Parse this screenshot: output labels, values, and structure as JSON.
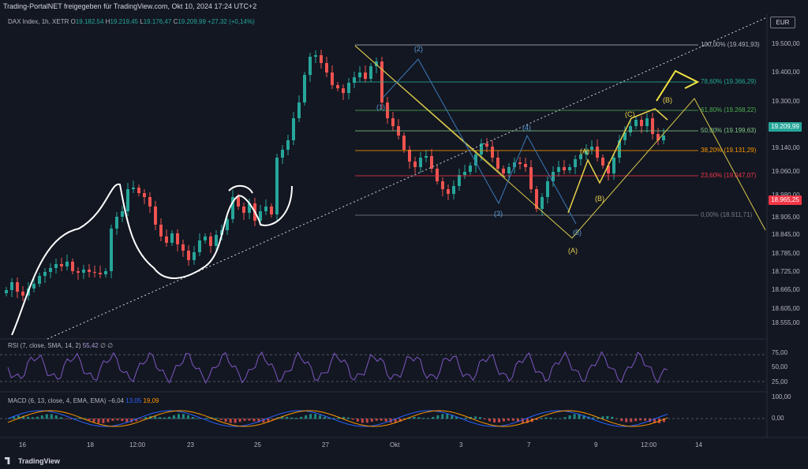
{
  "header": {
    "published": "Trading-PortalNET freigegeben für TradingView.com, Okt 10, 2024 17:24 UTC+2"
  },
  "symbol": {
    "name": "DAX Index, 1h, XETR",
    "o_label": "O",
    "o": "19.182,54",
    "h_label": "H",
    "h": "19.219,45",
    "l_label": "L",
    "l": "19.176,47",
    "c_label": "C",
    "c": "19.209,99",
    "change": "+27,32 (+0,14%)"
  },
  "currency": "EUR",
  "price_axis": {
    "ticks": [
      "19.500,00",
      "19.400,00",
      "19.300,00",
      "19.140,00",
      "19.060,00",
      "18.980,00",
      "18.905,00",
      "18.845,00",
      "18.785,00",
      "18.725,00",
      "18.665,00",
      "18.605,00",
      "18.555,00"
    ],
    "current_price": "19.209,99",
    "marker_price": "18.965,25",
    "current_color": "#26a69a",
    "marker_color": "#f23645"
  },
  "fib_levels": [
    {
      "label": "100,00% (19.491,93)",
      "color": "#b2b5be"
    },
    {
      "label": "78,60% (19.366,29)",
      "color": "#22ab94"
    },
    {
      "label": "61,80% (19.268,22)",
      "color": "#4caf50"
    },
    {
      "label": "50,00% (19.199,63)",
      "color": "#81c784"
    },
    {
      "label": "38,20% (19.131,29)",
      "color": "#ff9800"
    },
    {
      "label": "23,60% (19.047,07)",
      "color": "#f23645"
    },
    {
      "label": "0,00% (18.911,71)",
      "color": "#787b86"
    }
  ],
  "wave_labels": {
    "w1": "(1)",
    "w2": "(2)",
    "w3": "(3)",
    "w4": "(4)",
    "w5": "(5)",
    "a1": "(A)",
    "a2": "(A)",
    "b1": "(B)",
    "b2": "(B)",
    "c1": "(C)"
  },
  "rsi": {
    "label": "RSI (7, close, SMA, 14, 2)",
    "value": "55,42",
    "extra": "∅ ∅",
    "ticks": [
      "75,00",
      "50,00",
      "25,00"
    ]
  },
  "macd": {
    "label": "MACD (6, 13, close, 4, EMA, EMA)",
    "hist": "−6,04",
    "macd": "13,05",
    "signal": "19,09",
    "ticks": [
      "100,00",
      "0,00"
    ]
  },
  "time_axis": [
    "16",
    "18",
    "12:00",
    "23",
    "25",
    "27",
    "Okt",
    "3",
    "7",
    "9",
    "12:00",
    "14"
  ],
  "footer": {
    "brand": "TradingView"
  }
}
